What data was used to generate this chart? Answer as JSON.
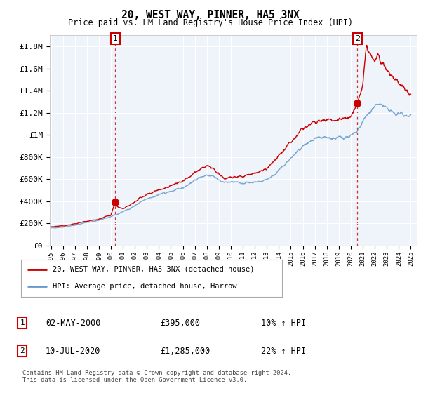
{
  "title": "20, WEST WAY, PINNER, HA5 3NX",
  "subtitle": "Price paid vs. HM Land Registry's House Price Index (HPI)",
  "ytick_values": [
    0,
    200000,
    400000,
    600000,
    800000,
    1000000,
    1200000,
    1400000,
    1600000,
    1800000
  ],
  "ylim": [
    0,
    1900000
  ],
  "xlim_start": 1994.9,
  "xlim_end": 2025.5,
  "hpi_color": "#6699CC",
  "price_color": "#CC0000",
  "marker1_year": 2000.37,
  "marker1_value": 395000,
  "marker2_year": 2020.54,
  "marker2_value": 1285000,
  "legend_label1": "20, WEST WAY, PINNER, HA5 3NX (detached house)",
  "legend_label2": "HPI: Average price, detached house, Harrow",
  "annotation1_num": "1",
  "annotation1_date": "02-MAY-2000",
  "annotation1_price": "£395,000",
  "annotation1_hpi": "10% ↑ HPI",
  "annotation2_num": "2",
  "annotation2_date": "10-JUL-2020",
  "annotation2_price": "£1,285,000",
  "annotation2_hpi": "22% ↑ HPI",
  "footer": "Contains HM Land Registry data © Crown copyright and database right 2024.\nThis data is licensed under the Open Government Licence v3.0.",
  "background_color": "#ffffff",
  "chart_bg_color": "#EEF4FA",
  "grid_color": "#ffffff",
  "dashed_line_color": "#cc0000"
}
